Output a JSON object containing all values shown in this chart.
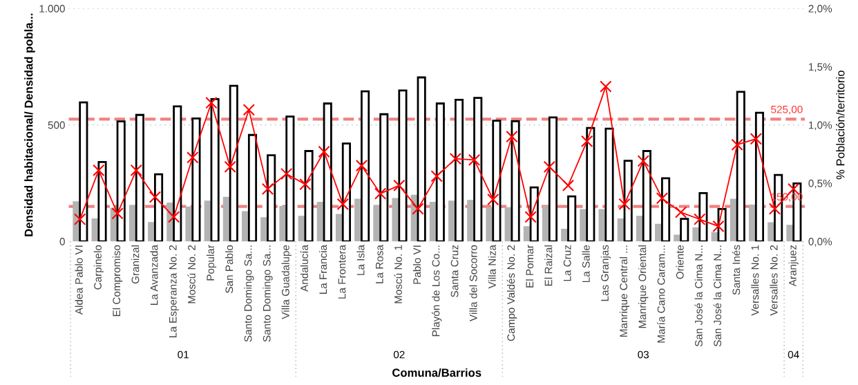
{
  "chart_data": {
    "type": "bar",
    "xlabel": "Comuna/Barrios",
    "ylabel": "Densidad habitacional/ Densidad pobla...",
    "y2label": "% Población/territorio",
    "categories": [
      "Aldea Pablo VI",
      "Carpinelo",
      "El Compromiso",
      "Granizal",
      "La Avanzada",
      "La Esperanza No. 2",
      "Moscú No. 2",
      "Popular",
      "San Pablo",
      "Santo Domingo Sa...",
      "Santo Domingo Sa...",
      "Villa Guadalupe",
      "Andalucía",
      "La Francia",
      "La Frontera",
      "La Isla",
      "La Rosa",
      "Moscú No. 1",
      "Pablo VI",
      "Playón de Los Co...",
      "Santa Cruz",
      "Villa del Socorro",
      "Villa Niza",
      "Campo Valdés No. 2",
      "El Pomar",
      "El Raizal",
      "La Cruz",
      "La Salle",
      "Las Granjas",
      "Manrique Central ...",
      "Manrique Oriental",
      "María Cano Caram...",
      "Oriente",
      "San José la Cima N...",
      "San José la Cima N...",
      "Santa Inés",
      "Versalles No. 1",
      "Versalles No. 2",
      "Aranjuez"
    ],
    "series": [
      {
        "color": "#b3b3b3",
        "values": [
          172,
          99,
          145,
          155,
          83,
          167,
          150,
          175,
          191,
          130,
          104,
          152,
          110,
          170,
          118,
          183,
          155,
          186,
          200,
          170,
          175,
          178,
          147,
          147,
          65,
          153,
          54,
          139,
          139,
          99,
          110,
          76,
          29,
          60,
          39,
          183,
          158,
          82,
          71
        ]
      },
      {
        "color": "#ffffff",
        "values": [
          597,
          341,
          515,
          543,
          288,
          580,
          528,
          611,
          668,
          457,
          370,
          536,
          388,
          592,
          420,
          644,
          546,
          648,
          704,
          592,
          608,
          616,
          518,
          516,
          232,
          532,
          193,
          487,
          484,
          346,
          388,
          271,
          97,
          207,
          139,
          642,
          552,
          285,
          249
        ]
      },
      {
        "type": "line",
        "axis": "y2",
        "color": "#ff0000",
        "marker": "cross",
        "values": [
          0.19,
          0.61,
          0.24,
          0.61,
          0.38,
          0.21,
          0.72,
          1.19,
          0.64,
          1.13,
          0.45,
          0.58,
          0.49,
          0.77,
          0.32,
          0.65,
          0.41,
          0.48,
          0.28,
          0.56,
          0.71,
          0.7,
          0.36,
          0.9,
          0.21,
          0.64,
          0.48,
          0.86,
          1.33,
          0.32,
          0.69,
          0.37,
          0.25,
          0.19,
          0.13,
          0.83,
          0.88,
          0.28,
          0.45
        ]
      }
    ],
    "ylim": [
      0,
      1000
    ],
    "yticks": [
      0,
      500,
      {
        "value": 1000,
        "label": "1.000"
      }
    ],
    "y2lim": [
      0,
      2
    ],
    "y2ticks": [
      {
        "value": 0,
        "label": "0,0%"
      },
      {
        "value": 0.5,
        "label": "0,5%"
      },
      {
        "value": 1,
        "label": "1,0%"
      },
      {
        "value": 1.5,
        "label": "1,5%"
      },
      {
        "value": 2,
        "label": "2,0%"
      }
    ],
    "ref_lines": [
      {
        "axis": "y",
        "value": 525,
        "label": "525,00",
        "color": "#f08080",
        "line_style": "dashed"
      },
      {
        "axis": "y",
        "value": 150,
        "label": "150,00",
        "color": "#f08080",
        "line_style": "dashed"
      }
    ],
    "annotations": [
      "01",
      "02",
      "03",
      "04"
    ],
    "grid": "y",
    "legend": false
  }
}
